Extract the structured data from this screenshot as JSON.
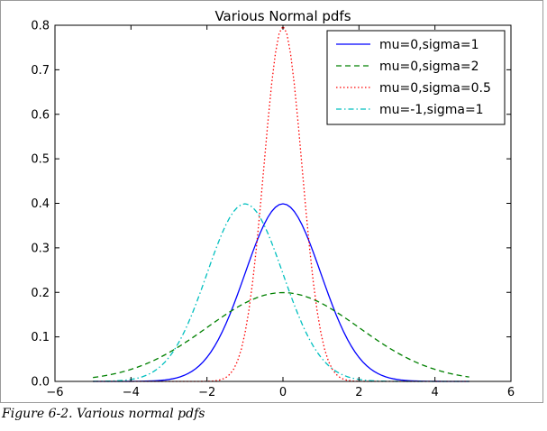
{
  "caption": "Figure 6-2. Various normal pdfs",
  "chart_data": {
    "type": "line",
    "title": "Various Normal pdfs",
    "xlabel": "",
    "ylabel": "",
    "xlim": [
      -6,
      6
    ],
    "ylim": [
      0,
      0.8
    ],
    "x_ticks": [
      "−6",
      "−4",
      "−2",
      "0",
      "2",
      "4",
      "6"
    ],
    "x_tick_values": [
      -6,
      -4,
      -2,
      0,
      2,
      4,
      6
    ],
    "y_ticks": [
      "0.0",
      "0.1",
      "0.2",
      "0.3",
      "0.4",
      "0.5",
      "0.6",
      "0.7",
      "0.8"
    ],
    "y_tick_values": [
      0,
      0.1,
      0.2,
      0.3,
      0.4,
      0.5,
      0.6,
      0.7,
      0.8
    ],
    "x_range": [
      -5,
      4.9
    ],
    "x_step": 0.1,
    "grid": false,
    "legend_position": "top-right",
    "series": [
      {
        "name": "mu=0,sigma=1",
        "mu": 0,
        "sigma": 1,
        "color": "#0000ff",
        "style": "solid"
      },
      {
        "name": "mu=0,sigma=2",
        "mu": 0,
        "sigma": 2,
        "color": "#008000",
        "style": "dashed"
      },
      {
        "name": "mu=0,sigma=0.5",
        "mu": 0,
        "sigma": 0.5,
        "color": "#ff0000",
        "style": "dotted"
      },
      {
        "name": "mu=-1,sigma=1",
        "mu": -1,
        "sigma": 1,
        "color": "#00bfbf",
        "style": "dashdot"
      }
    ]
  }
}
